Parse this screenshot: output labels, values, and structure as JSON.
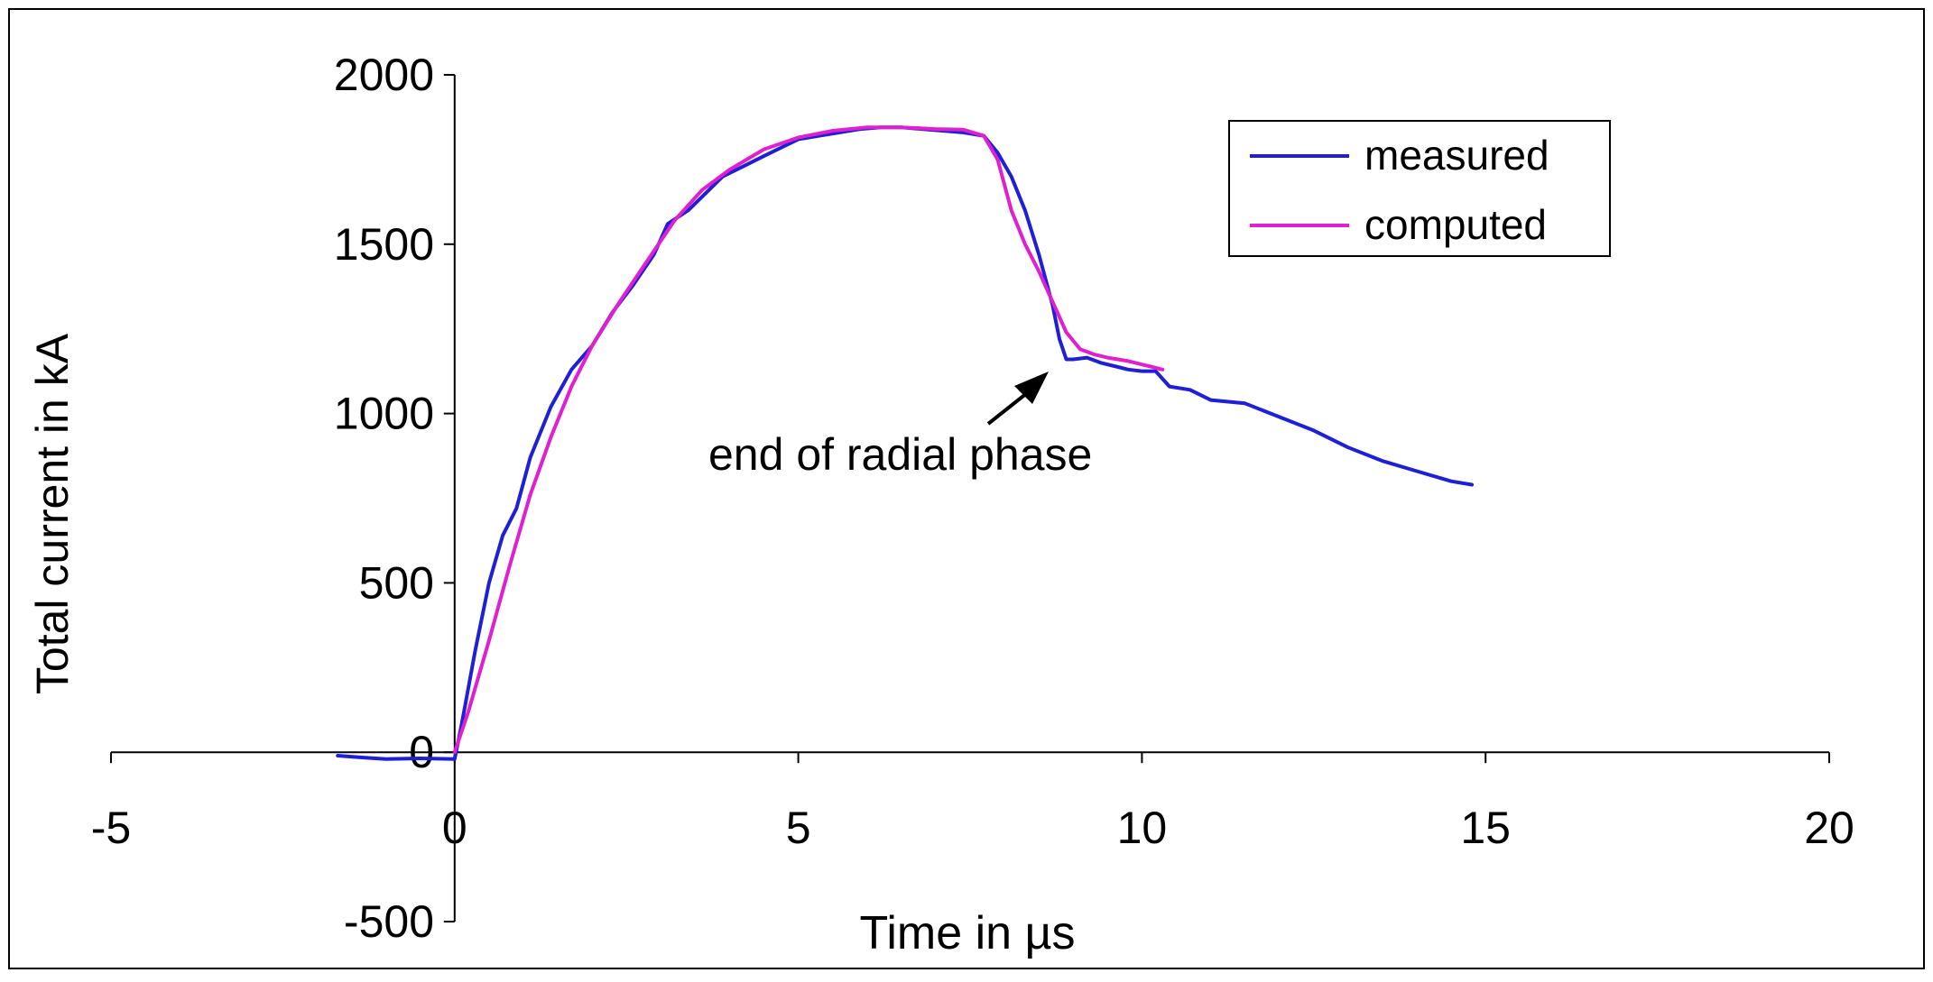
{
  "chart_data": {
    "type": "line",
    "title": "",
    "xlabel": "Time in µs",
    "ylabel": "Total current in kA",
    "xlim": [
      -5,
      20
    ],
    "ylim": [
      -500,
      2000
    ],
    "x_ticks": [
      "-5",
      "0",
      "5",
      "10",
      "15",
      "20"
    ],
    "y_ticks": [
      "2000",
      "1500",
      "1000",
      "500",
      "0",
      "-500"
    ],
    "x_tick_values": [
      -5,
      0,
      5,
      10,
      15,
      20
    ],
    "y_tick_values": [
      2000,
      1500,
      1000,
      500,
      0,
      -500
    ],
    "grid": false,
    "legend_position": "top-right",
    "colors": {
      "measured": "#1f1fd6",
      "computed": "#e020d0",
      "axis": "#000000"
    },
    "series": [
      {
        "name": "measured",
        "color": "#1f1fd6",
        "x": [
          -1.7,
          -1.4,
          -1.0,
          -0.5,
          0.0,
          0.1,
          0.3,
          0.5,
          0.7,
          0.9,
          1.1,
          1.4,
          1.7,
          2.0,
          2.3,
          2.6,
          2.9,
          3.1,
          3.4,
          3.6,
          3.9,
          4.2,
          4.5,
          4.7,
          5.0,
          5.3,
          5.6,
          5.9,
          6.2,
          6.5,
          6.8,
          7.1,
          7.4,
          7.7,
          7.9,
          8.1,
          8.3,
          8.5,
          8.7,
          8.8,
          8.9,
          9.0,
          9.2,
          9.4,
          9.6,
          9.8,
          10.0,
          10.2,
          10.4,
          10.7,
          11.0,
          11.5,
          12.0,
          12.5,
          13.0,
          13.5,
          14.0,
          14.5,
          14.8
        ],
        "values": [
          -10,
          -15,
          -20,
          -18,
          -20,
          80,
          300,
          500,
          640,
          720,
          870,
          1020,
          1130,
          1200,
          1300,
          1380,
          1470,
          1560,
          1600,
          1640,
          1700,
          1730,
          1760,
          1780,
          1810,
          1820,
          1830,
          1840,
          1845,
          1845,
          1840,
          1835,
          1830,
          1820,
          1770,
          1700,
          1600,
          1470,
          1320,
          1220,
          1160,
          1160,
          1165,
          1150,
          1140,
          1130,
          1125,
          1125,
          1080,
          1070,
          1040,
          1030,
          990,
          950,
          900,
          860,
          830,
          800,
          790
        ]
      },
      {
        "name": "computed",
        "color": "#e020d0",
        "x": [
          0.0,
          0.2,
          0.5,
          0.8,
          1.1,
          1.4,
          1.7,
          2.0,
          2.4,
          2.8,
          3.2,
          3.6,
          4.0,
          4.5,
          5.0,
          5.5,
          6.0,
          6.5,
          7.0,
          7.4,
          7.7,
          7.9,
          8.1,
          8.3,
          8.5,
          8.7,
          8.9,
          9.1,
          9.3,
          9.5,
          9.8,
          10.1,
          10.3
        ],
        "values": [
          0,
          120,
          330,
          550,
          760,
          930,
          1080,
          1200,
          1330,
          1450,
          1570,
          1660,
          1720,
          1780,
          1815,
          1835,
          1845,
          1845,
          1840,
          1838,
          1820,
          1750,
          1600,
          1500,
          1420,
          1330,
          1240,
          1190,
          1175,
          1165,
          1155,
          1140,
          1130
        ]
      }
    ],
    "legend": [
      "measured",
      "computed"
    ],
    "annotations": [
      {
        "text": "end of radial phase",
        "arrow_target": {
          "x": 8.8,
          "y": 1150
        }
      }
    ]
  }
}
